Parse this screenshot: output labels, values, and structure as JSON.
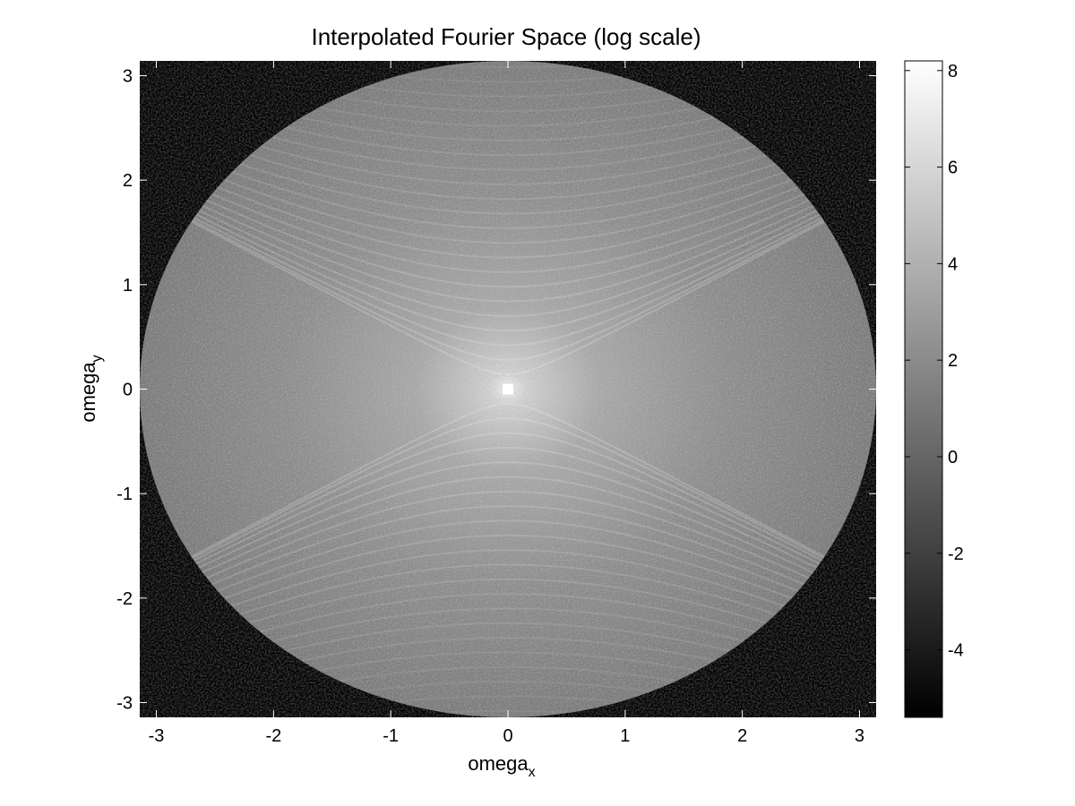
{
  "chart_data": {
    "type": "heatmap",
    "title": "Interpolated Fourier Space (log scale)",
    "xlabel": {
      "main": "omega",
      "sub": "x"
    },
    "ylabel": {
      "main": "omega",
      "sub": "y"
    },
    "xlim": [
      -3.1416,
      3.1416
    ],
    "ylim": [
      -3.1416,
      3.1416
    ],
    "x_ticks": [
      -3,
      -2,
      -1,
      0,
      1,
      2,
      3
    ],
    "x_tick_labels": [
      "-3",
      "-2",
      "-1",
      "0",
      "1",
      "2",
      "3"
    ],
    "y_ticks": [
      3,
      2,
      1,
      0,
      -1,
      -2,
      -3
    ],
    "y_tick_labels": [
      "3",
      "2",
      "1",
      "0",
      "-1",
      "-2",
      "-3"
    ],
    "colormap": "gray",
    "background_color": "#000000",
    "support": "disk of radius pi centered at origin; zero (black) outside",
    "grid": false,
    "colorbar": {
      "position": "right",
      "min": -5.4,
      "max": 8.2,
      "ticks": [
        8,
        6,
        4,
        2,
        0,
        -2,
        -4
      ],
      "tick_labels": [
        "8",
        "6",
        "4",
        "2",
        "0",
        "-2",
        "-4"
      ]
    },
    "value_range": [
      -5.4,
      8.2
    ],
    "peak": {
      "x": 0,
      "y": 0,
      "value": 8.2
    }
  }
}
